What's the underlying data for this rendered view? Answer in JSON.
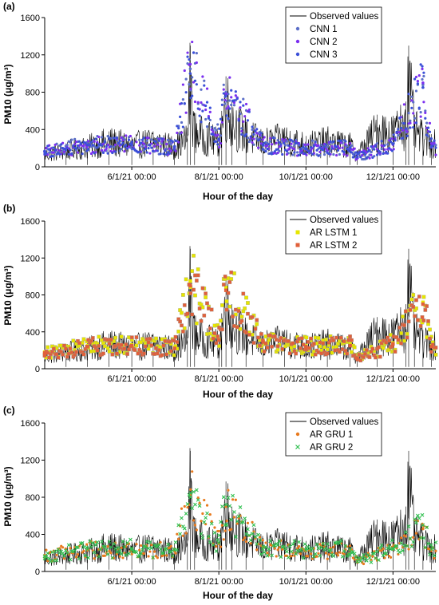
{
  "chart_data": [
    {
      "panel_label": "(a)",
      "type": "line",
      "xlabel": "Hour of the day",
      "ylabel": "PM10 (μg/m³)",
      "ylim": [
        0,
        1600
      ],
      "yticks": [
        "0",
        "400",
        "800",
        "1200",
        "1600"
      ],
      "xtick_labels": [
        "6/1/21 00:00",
        "8/1/21 00:00",
        "10/1/21 00:00",
        "12/1/21 00:00"
      ],
      "legend_position": "top-right",
      "observed": {
        "name": "Observed values",
        "color": "#000000",
        "x": [
          "2021-04-01",
          "2021-04-16",
          "2021-05-01",
          "2021-05-16",
          "2021-06-01",
          "2021-06-16",
          "2021-07-01",
          "2021-07-10",
          "2021-07-12",
          "2021-07-15",
          "2021-08-01",
          "2021-08-03",
          "2021-08-06",
          "2021-08-10",
          "2021-08-20",
          "2021-09-01",
          "2021-09-16",
          "2021-10-01",
          "2021-10-16",
          "2021-11-01",
          "2021-11-06",
          "2021-11-20",
          "2021-12-01",
          "2021-12-10",
          "2021-12-12",
          "2021-12-16",
          "2021-12-22",
          "2021-12-28"
        ],
        "values": [
          180,
          250,
          300,
          380,
          320,
          380,
          300,
          420,
          1300,
          520,
          360,
          600,
          970,
          700,
          480,
          360,
          420,
          330,
          380,
          320,
          180,
          560,
          500,
          700,
          1300,
          560,
          420,
          350
        ]
      },
      "series": [
        {
          "name": "CNN 1",
          "color": "#5b6ec8",
          "marker": "dot",
          "x": [
            "2021-04-01",
            "2021-05-01",
            "2021-06-01",
            "2021-07-01",
            "2021-07-12",
            "2021-08-01",
            "2021-08-06",
            "2021-09-01",
            "2021-10-01",
            "2021-11-01",
            "2021-11-06",
            "2021-12-01",
            "2021-12-22",
            "2021-12-28"
          ],
          "values": [
            170,
            240,
            230,
            220,
            1050,
            300,
            800,
            230,
            200,
            210,
            100,
            250,
            880,
            220
          ]
        },
        {
          "name": "CNN 2",
          "color": "#7b2ff0",
          "marker": "dot",
          "x": [
            "2021-04-01",
            "2021-05-01",
            "2021-06-01",
            "2021-07-01",
            "2021-07-12",
            "2021-08-01",
            "2021-08-06",
            "2021-09-01",
            "2021-10-01",
            "2021-11-01",
            "2021-11-06",
            "2021-12-01",
            "2021-12-22",
            "2021-12-28"
          ],
          "values": [
            160,
            230,
            240,
            210,
            1100,
            290,
            780,
            240,
            190,
            200,
            110,
            240,
            900,
            210
          ]
        },
        {
          "name": "CNN 3",
          "color": "#3b4fd8",
          "marker": "dot",
          "x": [
            "2021-04-01",
            "2021-05-01",
            "2021-06-01",
            "2021-07-01",
            "2021-07-12",
            "2021-08-01",
            "2021-08-06",
            "2021-09-01",
            "2021-10-01",
            "2021-11-01",
            "2021-11-06",
            "2021-12-01",
            "2021-12-22",
            "2021-12-28"
          ],
          "values": [
            165,
            235,
            235,
            215,
            1000,
            295,
            760,
            235,
            195,
            205,
            105,
            245,
            850,
            215
          ]
        }
      ]
    },
    {
      "panel_label": "(b)",
      "type": "line",
      "xlabel": "Hour of the day",
      "ylabel": "PM10 (μg/m³)",
      "ylim": [
        0,
        1600
      ],
      "yticks": [
        "0",
        "400",
        "800",
        "1200",
        "1600"
      ],
      "xtick_labels": [
        "6/1/21 00:00",
        "8/1/21 00:00",
        "10/1/21 00:00",
        "12/1/21 00:00"
      ],
      "legend_position": "top-right",
      "observed": {
        "name": "Observed values",
        "color": "#000000",
        "x": [
          "2021-04-01",
          "2021-04-16",
          "2021-05-01",
          "2021-05-16",
          "2021-06-01",
          "2021-06-16",
          "2021-07-01",
          "2021-07-10",
          "2021-07-12",
          "2021-07-15",
          "2021-08-01",
          "2021-08-03",
          "2021-08-06",
          "2021-08-10",
          "2021-08-20",
          "2021-09-01",
          "2021-09-16",
          "2021-10-01",
          "2021-10-16",
          "2021-11-01",
          "2021-11-06",
          "2021-11-20",
          "2021-12-01",
          "2021-12-10",
          "2021-12-12",
          "2021-12-16",
          "2021-12-22",
          "2021-12-28"
        ],
        "values": [
          180,
          250,
          300,
          380,
          320,
          380,
          300,
          420,
          1300,
          520,
          360,
          600,
          970,
          700,
          480,
          360,
          420,
          330,
          380,
          320,
          180,
          560,
          500,
          700,
          1300,
          560,
          420,
          350
        ]
      },
      "series": [
        {
          "name": "AR LSTM 1",
          "color": "#e6e600",
          "marker": "square",
          "x": [
            "2021-04-01",
            "2021-05-01",
            "2021-06-01",
            "2021-07-01",
            "2021-07-12",
            "2021-08-01",
            "2021-08-06",
            "2021-09-01",
            "2021-10-01",
            "2021-11-01",
            "2021-11-06",
            "2021-12-01",
            "2021-12-22",
            "2021-12-28"
          ],
          "values": [
            180,
            250,
            260,
            230,
            950,
            320,
            880,
            300,
            250,
            260,
            120,
            280,
            720,
            250
          ]
        },
        {
          "name": "AR LSTM 2",
          "color": "#e0603a",
          "marker": "square",
          "x": [
            "2021-04-01",
            "2021-05-01",
            "2021-06-01",
            "2021-07-01",
            "2021-07-12",
            "2021-08-01",
            "2021-08-06",
            "2021-09-01",
            "2021-10-01",
            "2021-11-01",
            "2021-11-06",
            "2021-12-01",
            "2021-12-22",
            "2021-12-28"
          ],
          "values": [
            170,
            240,
            250,
            220,
            900,
            310,
            850,
            290,
            240,
            250,
            110,
            270,
            700,
            240
          ]
        }
      ]
    },
    {
      "panel_label": "(c)",
      "type": "line",
      "xlabel": "Hour of the day",
      "ylabel": "PM10 (μg/m³)",
      "ylim": [
        0,
        1600
      ],
      "yticks": [
        "0",
        "400",
        "800",
        "1200",
        "1600"
      ],
      "xtick_labels": [
        "6/1/21 00:00",
        "8/1/21 00:00",
        "10/1/21 00:00",
        "12/1/21 00:00"
      ],
      "legend_position": "top-right",
      "observed": {
        "name": "Observed values",
        "color": "#000000",
        "x": [
          "2021-04-01",
          "2021-04-16",
          "2021-05-01",
          "2021-05-16",
          "2021-06-01",
          "2021-06-16",
          "2021-07-01",
          "2021-07-10",
          "2021-07-12",
          "2021-07-15",
          "2021-08-01",
          "2021-08-03",
          "2021-08-06",
          "2021-08-10",
          "2021-08-20",
          "2021-09-01",
          "2021-09-16",
          "2021-10-01",
          "2021-10-16",
          "2021-11-01",
          "2021-11-06",
          "2021-11-20",
          "2021-12-01",
          "2021-12-10",
          "2021-12-12",
          "2021-12-16",
          "2021-12-22",
          "2021-12-28"
        ],
        "values": [
          180,
          250,
          300,
          380,
          320,
          380,
          300,
          420,
          1300,
          520,
          360,
          600,
          970,
          700,
          480,
          360,
          420,
          330,
          380,
          320,
          180,
          560,
          500,
          700,
          1300,
          560,
          420,
          350
        ]
      },
      "series": [
        {
          "name": "AR GRU 1",
          "color": "#e87a1e",
          "marker": "dot",
          "x": [
            "2021-04-01",
            "2021-05-01",
            "2021-06-01",
            "2021-07-01",
            "2021-07-12",
            "2021-08-01",
            "2021-08-06",
            "2021-09-01",
            "2021-10-01",
            "2021-11-01",
            "2021-11-06",
            "2021-12-01",
            "2021-12-22",
            "2021-12-28"
          ],
          "values": [
            175,
            230,
            240,
            220,
            820,
            300,
            700,
            260,
            220,
            230,
            100,
            240,
            460,
            230
          ]
        },
        {
          "name": "AR GRU 2",
          "color": "#2fbf4f",
          "marker": "cross",
          "x": [
            "2021-04-01",
            "2021-05-01",
            "2021-06-01",
            "2021-07-01",
            "2021-07-12",
            "2021-08-01",
            "2021-08-06",
            "2021-09-01",
            "2021-10-01",
            "2021-11-01",
            "2021-11-06",
            "2021-12-01",
            "2021-12-22",
            "2021-12-28"
          ],
          "values": [
            165,
            240,
            250,
            230,
            800,
            310,
            720,
            270,
            230,
            240,
            110,
            250,
            500,
            240
          ]
        }
      ]
    }
  ]
}
